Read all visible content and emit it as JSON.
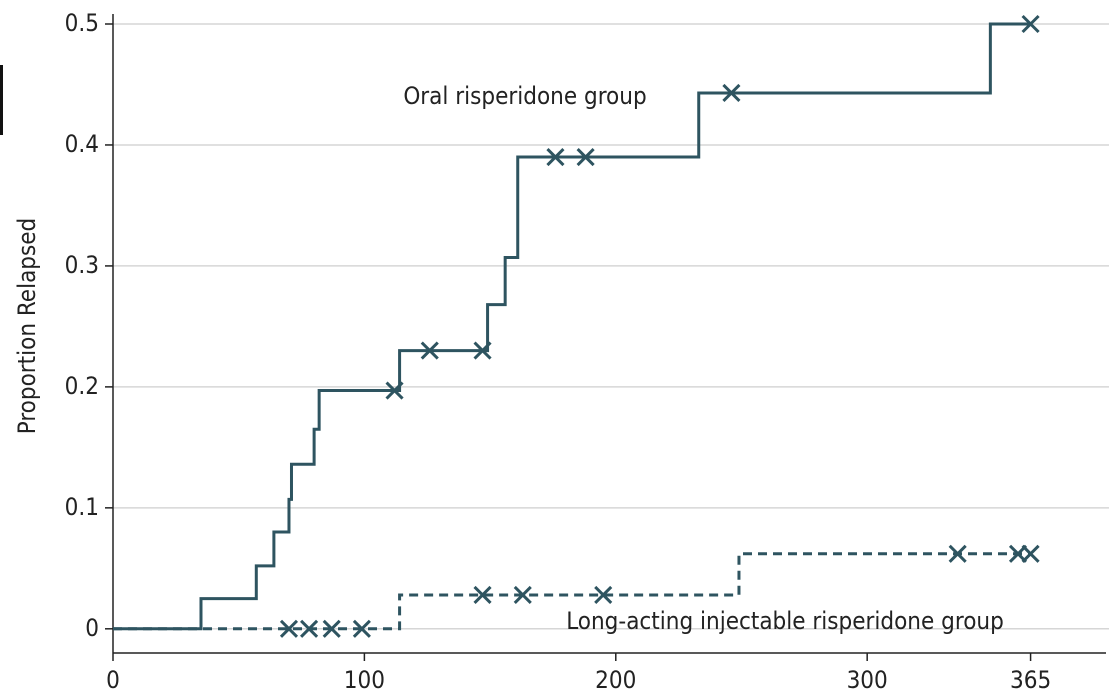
{
  "chart_data": {
    "type": "step",
    "y_label": "Proportion Relapsed",
    "xlim": [
      0,
      395
    ],
    "ylim": [
      -0.02,
      0.5
    ],
    "xticks": [
      0,
      100,
      200,
      300,
      365
    ],
    "yticks": [
      0,
      0.1,
      0.2,
      0.3,
      0.4,
      0.5
    ],
    "grid": true,
    "series": [
      {
        "name": "Oral risperidone group",
        "color": "#2e5460",
        "dashed": false,
        "x": [
          0,
          35,
          57,
          64,
          70,
          71,
          80,
          82,
          114,
          149,
          156,
          161,
          233,
          349
        ],
        "values": [
          0,
          0.025,
          0.052,
          0.08,
          0.107,
          0.136,
          0.165,
          0.197,
          0.23,
          0.268,
          0.307,
          0.39,
          0.443,
          0.5
        ],
        "censor_x": [
          112,
          126,
          147,
          176,
          188,
          246,
          365
        ],
        "censor_values": [
          0.197,
          0.23,
          0.23,
          0.39,
          0.39,
          0.443,
          0.5
        ]
      },
      {
        "name": "Long-acting injectable risperidone group",
        "color": "#2e5460",
        "dashed": true,
        "x": [
          0,
          114,
          249
        ],
        "values": [
          0,
          0.028,
          0.062
        ],
        "censor_x": [
          70,
          78,
          87,
          99,
          147,
          163,
          195,
          336,
          360,
          365
        ],
        "censor_values": [
          0,
          0,
          0,
          0,
          0.028,
          0.028,
          0.028,
          0.062,
          0.062,
          0.062
        ]
      }
    ]
  }
}
